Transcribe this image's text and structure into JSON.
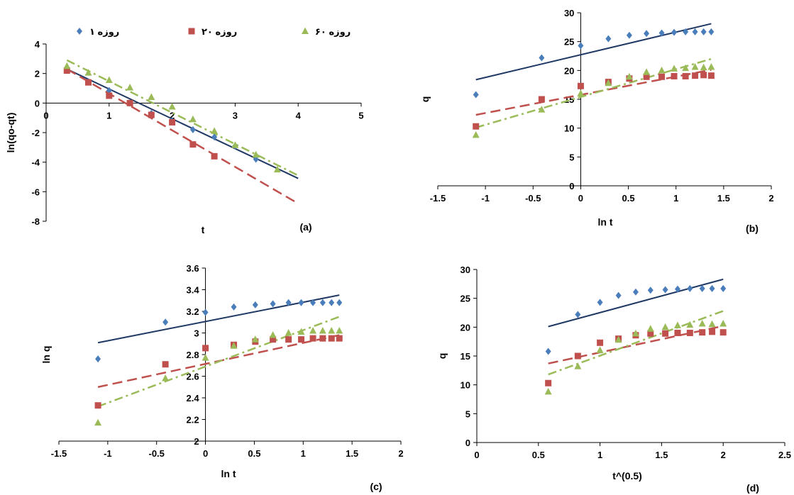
{
  "colors": {
    "s1": "#4a7ebb",
    "s20": "#c0504d",
    "s60": "#9bbb59",
    "line1": "#1f3864",
    "axis": "#000000"
  },
  "legend": [
    {
      "label": "۱ روزه",
      "marker": "diamond",
      "series": "s1"
    },
    {
      "label": "۲۰ روزه",
      "marker": "square",
      "series": "s20"
    },
    {
      "label": "۶۰ روزه",
      "marker": "triangle",
      "series": "s60"
    }
  ],
  "chart_data": [
    {
      "id": "a",
      "type": "scatter",
      "panel_label": "(a)",
      "xlabel": "t",
      "ylabel": "ln(qo-qt)",
      "xlim": [
        0,
        5
      ],
      "ylim": [
        -8,
        4
      ],
      "xticks": [
        0,
        1,
        2,
        3,
        4,
        5
      ],
      "yticks": [
        -8,
        -6,
        -4,
        -2,
        0,
        2,
        4
      ],
      "series": [
        {
          "key": "s1",
          "points": [
            [
              0.33,
              2.2
            ],
            [
              0.67,
              1.45
            ],
            [
              1.0,
              0.85
            ],
            [
              1.33,
              0.0
            ],
            [
              1.67,
              -0.7
            ],
            [
              2.0,
              -1.2
            ],
            [
              2.33,
              -1.8
            ],
            [
              2.67,
              -2.3
            ],
            [
              3.0,
              -2.9
            ],
            [
              3.33,
              -3.8
            ]
          ],
          "fit": [
            [
              0.33,
              2.3
            ],
            [
              4.0,
              -5.1
            ]
          ]
        },
        {
          "key": "s20",
          "points": [
            [
              0.33,
              2.2
            ],
            [
              0.67,
              1.4
            ],
            [
              1.0,
              0.5
            ],
            [
              1.33,
              0.0
            ],
            [
              1.67,
              -0.8
            ],
            [
              2.0,
              -1.3
            ],
            [
              2.33,
              -2.8
            ],
            [
              2.67,
              -3.6
            ]
          ],
          "fit": [
            [
              0.33,
              2.3
            ],
            [
              4.0,
              -6.8
            ]
          ]
        },
        {
          "key": "s60",
          "points": [
            [
              0.33,
              2.5
            ],
            [
              0.67,
              2.05
            ],
            [
              1.0,
              1.55
            ],
            [
              1.33,
              1.05
            ],
            [
              1.67,
              0.4
            ],
            [
              2.0,
              -0.25
            ],
            [
              2.33,
              -1.1
            ],
            [
              2.67,
              -1.9
            ],
            [
              3.0,
              -2.85
            ],
            [
              3.33,
              -3.5
            ],
            [
              3.67,
              -4.5
            ]
          ],
          "fit": [
            [
              0.33,
              2.9
            ],
            [
              4.0,
              -4.9
            ]
          ]
        }
      ]
    },
    {
      "id": "b",
      "type": "scatter",
      "panel_label": "(b)",
      "xlabel": "ln t",
      "ylabel": "q",
      "xlim": [
        -1.5,
        2
      ],
      "ylim": [
        0,
        30
      ],
      "xticks": [
        -1.5,
        -1,
        -0.5,
        0,
        0.5,
        1,
        1.5,
        2
      ],
      "yticks": [
        0,
        5,
        10,
        15,
        20,
        25,
        30
      ],
      "series": [
        {
          "key": "s1",
          "points": [
            [
              -1.1,
              15.8
            ],
            [
              -0.41,
              22.2
            ],
            [
              0,
              24.3
            ],
            [
              0.29,
              25.5
            ],
            [
              0.51,
              26.1
            ],
            [
              0.69,
              26.4
            ],
            [
              0.85,
              26.5
            ],
            [
              0.98,
              26.6
            ],
            [
              1.1,
              26.7
            ],
            [
              1.2,
              26.7
            ],
            [
              1.29,
              26.7
            ],
            [
              1.37,
              26.7
            ]
          ],
          "fit": [
            [
              -1.1,
              18.4
            ],
            [
              1.37,
              28.1
            ]
          ]
        },
        {
          "key": "s20",
          "points": [
            [
              -1.1,
              10.3
            ],
            [
              -0.41,
              15.0
            ],
            [
              0,
              17.3
            ],
            [
              0.29,
              18.0
            ],
            [
              0.51,
              18.6
            ],
            [
              0.69,
              18.9
            ],
            [
              0.85,
              18.9
            ],
            [
              0.98,
              19.0
            ],
            [
              1.1,
              19.0
            ],
            [
              1.2,
              19.1
            ],
            [
              1.29,
              19.2
            ],
            [
              1.37,
              19.1
            ]
          ],
          "fit": [
            [
              -1.1,
              12.3
            ],
            [
              1.37,
              20.1
            ]
          ]
        },
        {
          "key": "s60",
          "points": [
            [
              -1.1,
              8.8
            ],
            [
              -0.41,
              13.2
            ],
            [
              0,
              16.0
            ],
            [
              0.29,
              17.8
            ],
            [
              0.51,
              18.9
            ],
            [
              0.69,
              19.7
            ],
            [
              0.85,
              20.0
            ],
            [
              0.98,
              20.3
            ],
            [
              1.1,
              20.4
            ],
            [
              1.2,
              20.6
            ],
            [
              1.29,
              20.5
            ],
            [
              1.37,
              20.6
            ]
          ],
          "fit": [
            [
              -1.1,
              10.1
            ],
            [
              1.37,
              22.0
            ]
          ]
        }
      ]
    },
    {
      "id": "c",
      "type": "scatter",
      "panel_label": "(c)",
      "xlabel": "ln t",
      "ylabel": "ln q",
      "xlim": [
        -1.5,
        2
      ],
      "ylim": [
        2,
        3.6
      ],
      "xticks": [
        -1.5,
        -1,
        -0.5,
        0,
        0.5,
        1,
        1.5,
        2
      ],
      "yticks": [
        2,
        2.2,
        2.4,
        2.6,
        2.8,
        3,
        3.2,
        3.4,
        3.6
      ],
      "series": [
        {
          "key": "s1",
          "points": [
            [
              -1.1,
              2.76
            ],
            [
              -0.41,
              3.1
            ],
            [
              0,
              3.19
            ],
            [
              0.29,
              3.24
            ],
            [
              0.51,
              3.26
            ],
            [
              0.69,
              3.27
            ],
            [
              0.85,
              3.28
            ],
            [
              0.98,
              3.28
            ],
            [
              1.1,
              3.28
            ],
            [
              1.2,
              3.28
            ],
            [
              1.29,
              3.28
            ],
            [
              1.37,
              3.28
            ]
          ],
          "fit": [
            [
              -1.1,
              2.91
            ],
            [
              1.37,
              3.35
            ]
          ]
        },
        {
          "key": "s20",
          "points": [
            [
              -1.1,
              2.33
            ],
            [
              -0.41,
              2.71
            ],
            [
              0,
              2.86
            ],
            [
              0.29,
              2.89
            ],
            [
              0.51,
              2.92
            ],
            [
              0.69,
              2.94
            ],
            [
              0.85,
              2.94
            ],
            [
              0.98,
              2.94
            ],
            [
              1.1,
              2.95
            ],
            [
              1.2,
              2.95
            ],
            [
              1.29,
              2.95
            ],
            [
              1.37,
              2.95
            ]
          ],
          "fit": [
            [
              -1.1,
              2.5
            ],
            [
              1.37,
              2.98
            ]
          ]
        },
        {
          "key": "s60",
          "points": [
            [
              -1.1,
              2.17
            ],
            [
              -0.41,
              2.58
            ],
            [
              0,
              2.77
            ],
            [
              0.29,
              2.88
            ],
            [
              0.51,
              2.94
            ],
            [
              0.69,
              2.98
            ],
            [
              0.85,
              3.0
            ],
            [
              0.98,
              3.01
            ],
            [
              1.1,
              3.02
            ],
            [
              1.2,
              3.02
            ],
            [
              1.29,
              3.02
            ],
            [
              1.37,
              3.02
            ]
          ],
          "fit": [
            [
              -1.1,
              2.32
            ],
            [
              1.37,
              3.15
            ]
          ]
        }
      ]
    },
    {
      "id": "d",
      "type": "scatter",
      "panel_label": "(d)",
      "xlabel": "t^(0.5)",
      "ylabel": "q",
      "xlim": [
        0,
        2.5
      ],
      "ylim": [
        0,
        30
      ],
      "xticks": [
        0,
        0.5,
        1,
        1.5,
        2,
        2.5
      ],
      "yticks": [
        0,
        5,
        10,
        15,
        20,
        25,
        30
      ],
      "series": [
        {
          "key": "s1",
          "points": [
            [
              0.58,
              15.8
            ],
            [
              0.82,
              22.2
            ],
            [
              1.0,
              24.3
            ],
            [
              1.15,
              25.5
            ],
            [
              1.29,
              26.1
            ],
            [
              1.41,
              26.4
            ],
            [
              1.53,
              26.5
            ],
            [
              1.63,
              26.6
            ],
            [
              1.73,
              26.7
            ],
            [
              1.83,
              26.7
            ],
            [
              1.91,
              26.7
            ],
            [
              2.0,
              26.7
            ]
          ],
          "fit": [
            [
              0.58,
              20.1
            ],
            [
              2.0,
              28.3
            ]
          ]
        },
        {
          "key": "s20",
          "points": [
            [
              0.58,
              10.3
            ],
            [
              0.82,
              15.0
            ],
            [
              1.0,
              17.3
            ],
            [
              1.15,
              18.0
            ],
            [
              1.29,
              18.6
            ],
            [
              1.41,
              18.9
            ],
            [
              1.53,
              18.9
            ],
            [
              1.63,
              19.0
            ],
            [
              1.73,
              19.0
            ],
            [
              1.83,
              19.1
            ],
            [
              1.91,
              19.2
            ],
            [
              2.0,
              19.1
            ]
          ],
          "fit": [
            [
              0.58,
              13.7
            ],
            [
              2.0,
              20.2
            ]
          ]
        },
        {
          "key": "s60",
          "points": [
            [
              0.58,
              8.8
            ],
            [
              0.82,
              13.2
            ],
            [
              1.0,
              16.0
            ],
            [
              1.15,
              17.8
            ],
            [
              1.29,
              18.9
            ],
            [
              1.41,
              19.7
            ],
            [
              1.53,
              20.0
            ],
            [
              1.63,
              20.3
            ],
            [
              1.73,
              20.4
            ],
            [
              1.83,
              20.6
            ],
            [
              1.91,
              20.5
            ],
            [
              2.0,
              20.6
            ]
          ],
          "fit": [
            [
              0.58,
              11.8
            ],
            [
              2.0,
              22.8
            ]
          ]
        }
      ]
    }
  ]
}
